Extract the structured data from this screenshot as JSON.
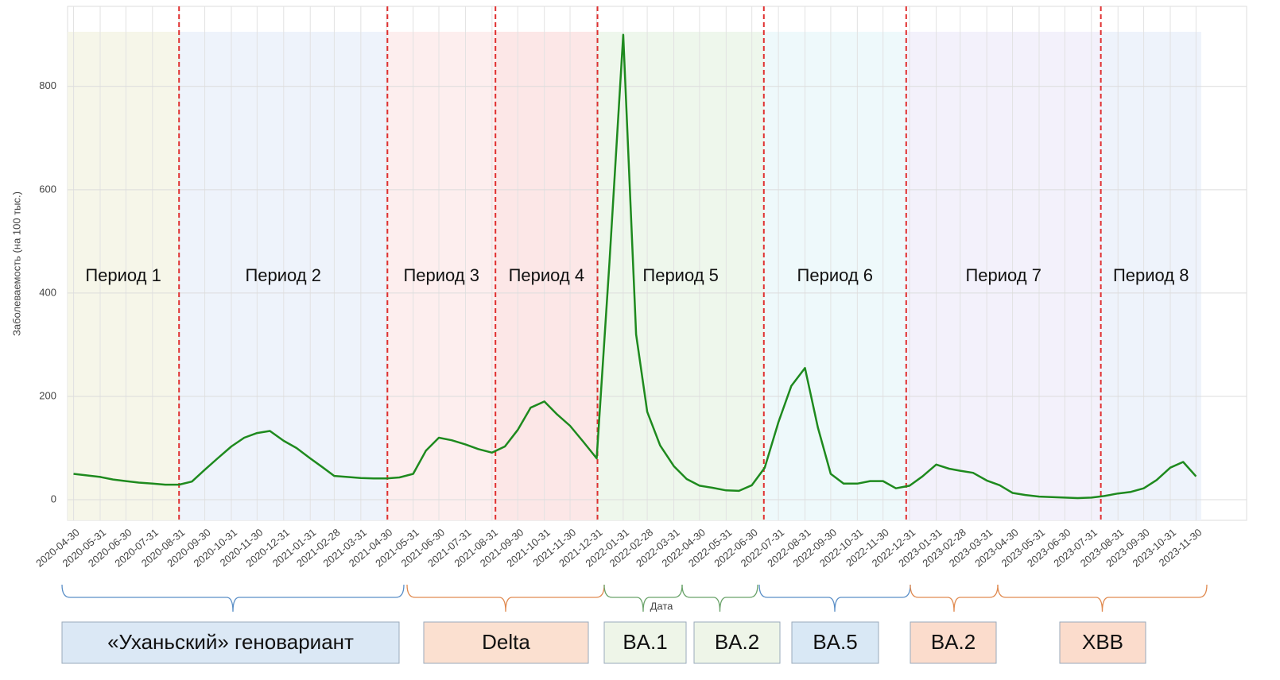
{
  "chart_data": {
    "type": "line",
    "y_label": "Заболеваемость (на 100 тыс.)",
    "x_label": "Дата",
    "color": "#1e8a1e",
    "xlim": [
      "2020-04-23",
      "2024-01-28"
    ],
    "ylim": [
      -40,
      955
    ],
    "yticks": [
      0,
      200,
      400,
      600,
      800
    ],
    "grid": true,
    "xticks": [
      "2020-04-30",
      "2020-05-31",
      "2020-06-30",
      "2020-07-31",
      "2020-08-31",
      "2020-09-30",
      "2020-10-31",
      "2020-11-30",
      "2020-12-31",
      "2021-01-31",
      "2021-02-28",
      "2021-03-31",
      "2021-04-30",
      "2021-05-31",
      "2021-06-30",
      "2021-07-31",
      "2021-08-31",
      "2021-09-30",
      "2021-10-31",
      "2021-11-30",
      "2021-12-31",
      "2022-01-31",
      "2022-02-28",
      "2022-03-31",
      "2022-04-30",
      "2022-05-31",
      "2022-06-30",
      "2022-07-31",
      "2022-08-31",
      "2022-09-30",
      "2022-10-31",
      "2022-11-30",
      "2022-12-31",
      "2023-01-31",
      "2023-02-28",
      "2023-03-31",
      "2023-04-30",
      "2023-05-31",
      "2023-06-30",
      "2023-07-31",
      "2023-08-31",
      "2023-09-30",
      "2023-10-31",
      "2023-11-30"
    ],
    "x": [
      "2020-04-30",
      "2020-05-15",
      "2020-05-31",
      "2020-06-15",
      "2020-06-30",
      "2020-07-15",
      "2020-07-31",
      "2020-08-15",
      "2020-08-31",
      "2020-09-15",
      "2020-09-30",
      "2020-10-15",
      "2020-10-31",
      "2020-11-15",
      "2020-11-30",
      "2020-12-15",
      "2020-12-31",
      "2021-01-15",
      "2021-01-31",
      "2021-02-15",
      "2021-02-28",
      "2021-03-15",
      "2021-03-31",
      "2021-04-15",
      "2021-04-30",
      "2021-05-15",
      "2021-05-31",
      "2021-06-15",
      "2021-06-30",
      "2021-07-15",
      "2021-07-31",
      "2021-08-15",
      "2021-08-31",
      "2021-09-15",
      "2021-09-30",
      "2021-10-15",
      "2021-10-31",
      "2021-11-15",
      "2021-11-30",
      "2021-12-15",
      "2021-12-31",
      "2022-01-15",
      "2022-01-31",
      "2022-02-15",
      "2022-02-28",
      "2022-03-15",
      "2022-03-31",
      "2022-04-15",
      "2022-04-30",
      "2022-05-15",
      "2022-05-31",
      "2022-06-15",
      "2022-06-30",
      "2022-07-15",
      "2022-07-31",
      "2022-08-15",
      "2022-08-31",
      "2022-09-15",
      "2022-09-30",
      "2022-10-15",
      "2022-10-31",
      "2022-11-15",
      "2022-11-30",
      "2022-12-15",
      "2022-12-31",
      "2023-01-15",
      "2023-01-31",
      "2023-02-15",
      "2023-02-28",
      "2023-03-15",
      "2023-03-31",
      "2023-04-15",
      "2023-04-30",
      "2023-05-15",
      "2023-05-31",
      "2023-06-15",
      "2023-06-30",
      "2023-07-15",
      "2023-07-31",
      "2023-08-15",
      "2023-08-31",
      "2023-09-15",
      "2023-09-30",
      "2023-10-15",
      "2023-10-31",
      "2023-11-15",
      "2023-11-30"
    ],
    "values": [
      50,
      47,
      44,
      39,
      36,
      33,
      31,
      29,
      29,
      35,
      58,
      80,
      103,
      120,
      129,
      133,
      114,
      100,
      80,
      62,
      46,
      44,
      42,
      41,
      41,
      43,
      50,
      95,
      120,
      115,
      107,
      98,
      91,
      103,
      135,
      178,
      190,
      165,
      143,
      113,
      80,
      460,
      900,
      320,
      170,
      105,
      65,
      40,
      27,
      23,
      18,
      17,
      28,
      62,
      150,
      220,
      255,
      140,
      50,
      31,
      31,
      36,
      36,
      22,
      27,
      45,
      68,
      60,
      56,
      52,
      37,
      28,
      13,
      9,
      6,
      5,
      4,
      3,
      4,
      7,
      12,
      15,
      22,
      38,
      62,
      73,
      45
    ],
    "periods": [
      {
        "label": "Период 1",
        "start": "2020-04-23",
        "end": "2020-08-31",
        "color": "#f6f6e9"
      },
      {
        "label": "Период 2",
        "start": "2020-08-31",
        "end": "2021-05-01",
        "color": "#eef3fb"
      },
      {
        "label": "Период 3",
        "start": "2021-05-01",
        "end": "2021-09-04",
        "color": "#fdeeee"
      },
      {
        "label": "Период 4",
        "start": "2021-09-04",
        "end": "2022-01-01",
        "color": "#fce7e7"
      },
      {
        "label": "Период 5",
        "start": "2022-01-01",
        "end": "2022-07-14",
        "color": "#eef7ec"
      },
      {
        "label": "Период 6",
        "start": "2022-07-14",
        "end": "2022-12-27",
        "color": "#eef9fb"
      },
      {
        "label": "Период 7",
        "start": "2022-12-27",
        "end": "2023-08-11",
        "color": "#f3f1fb"
      },
      {
        "label": "Период 8",
        "start": "2023-08-11",
        "end": "2023-12-06",
        "color": "#eef3fb"
      }
    ],
    "variants": [
      {
        "label": "«Уханьский» геновариант",
        "color": "#dbe8f5",
        "brace": "#5b8fc7"
      },
      {
        "label": "Delta",
        "color": "#fbe0d0",
        "brace": "#e08a50"
      },
      {
        "label": "BA.1",
        "color": "#eef5e8",
        "brace": "#6aa36a"
      },
      {
        "label": "BA.2",
        "color": "#eef5e8",
        "brace": "#6aa36a"
      },
      {
        "label": "BA.5",
        "color": "#d9e8f5",
        "brace": "#5b8fc7"
      },
      {
        "label": "BA.2",
        "color": "#fbdccc",
        "brace": "#e08a50"
      },
      {
        "label": "XBB",
        "color": "#fbdccc",
        "brace": "#e08a50"
      }
    ]
  }
}
